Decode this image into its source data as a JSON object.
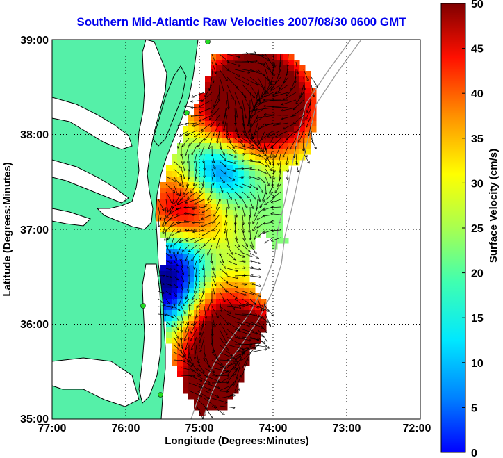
{
  "title": "Southern Mid-Atlantic Raw Velocities 2007/08/30 0600 GMT",
  "axes": {
    "xlabel": "Longitude (Degrees:Minutes)",
    "ylabel": "Latitude (Degrees:Minutes)",
    "x_ticks": [
      "77:00",
      "76:00",
      "75:00",
      "74:00",
      "73:00",
      "72:00"
    ],
    "y_ticks": [
      "39:00",
      "38:00",
      "37:00",
      "36:00",
      "35:00"
    ],
    "xlim": [
      -77,
      -72
    ],
    "ylim": [
      35,
      39
    ],
    "grid": "dotted"
  },
  "colorbar": {
    "label": "Surface Velocity (cm/s)",
    "ticks": [
      "0",
      "5",
      "10",
      "15",
      "20",
      "25",
      "30",
      "35",
      "40",
      "45",
      "50"
    ],
    "range": [
      0,
      50
    ],
    "colormap": "jet"
  },
  "colors": {
    "land": "#55f0a8",
    "coast": "#000000",
    "bathymetry": "#9a9a9a",
    "arrows": "#000000",
    "stations": "#22dd22"
  },
  "map_symbols": [
    "land",
    "coastline",
    "bathymetry-contours",
    "velocity-field",
    "velocity-arrows",
    "radar-stations"
  ]
}
